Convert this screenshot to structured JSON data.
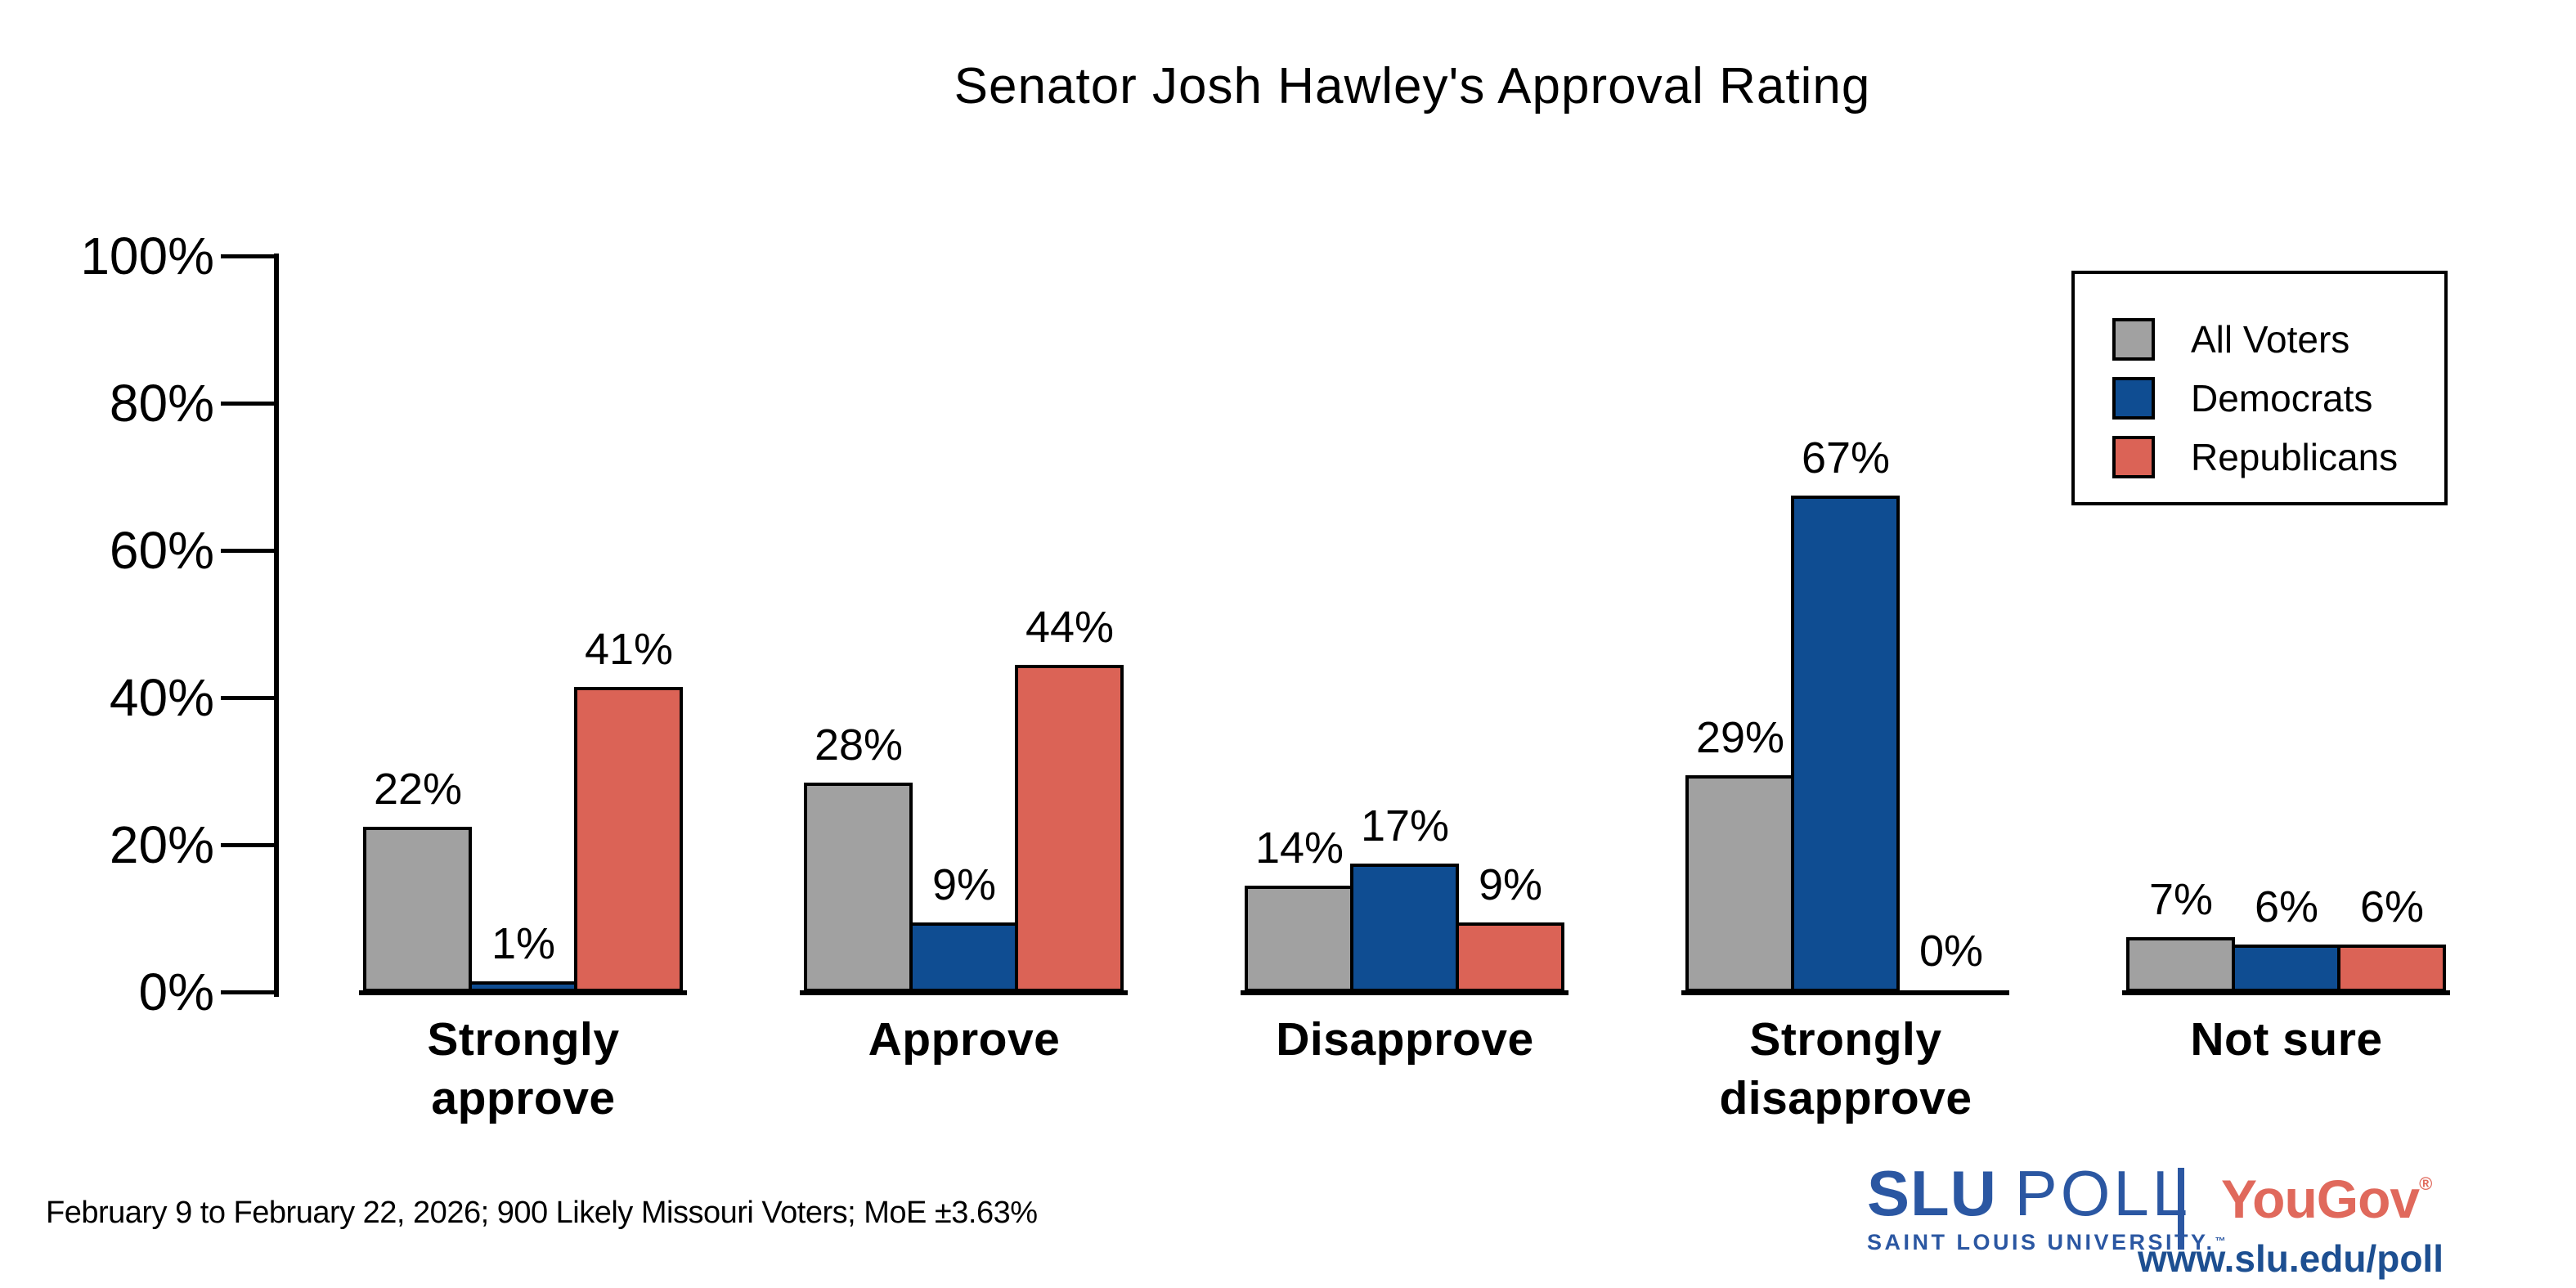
{
  "footnote": "February 9 to February 22, 2026; 900 Likely Missouri Voters; MoE ±3.63%",
  "branding": {
    "slu": "SLU",
    "poll": "POLL",
    "university": "SAINT LOUIS UNIVERSITY.",
    "trademark": "™",
    "yougov": "YouGov",
    "registered": "®",
    "url": "www.slu.edu/poll",
    "slu_blue": "#2b57a2",
    "url_blue": "#1d4f91",
    "yougov_red": "#e0695c"
  },
  "chart_data": {
    "type": "bar",
    "title": "Senator Josh Hawley's Approval Rating",
    "categories": [
      "Strongly approve",
      "Approve",
      "Disapprove",
      "Strongly disapprove",
      "Not sure"
    ],
    "category_lines": [
      [
        "Strongly",
        "approve"
      ],
      [
        "Approve"
      ],
      [
        "Disapprove"
      ],
      [
        "Strongly",
        "disapprove"
      ],
      [
        "Not sure"
      ]
    ],
    "series": [
      {
        "name": "All Voters",
        "color": "#a1a1a1",
        "values": [
          22,
          28,
          14,
          29,
          7
        ]
      },
      {
        "name": "Democrats",
        "color": "#0f4d92",
        "values": [
          1,
          9,
          17,
          67,
          6
        ]
      },
      {
        "name": "Republicans",
        "color": "#db6356",
        "values": [
          41,
          44,
          9,
          0,
          6
        ]
      }
    ],
    "value_suffix": "%",
    "yticks": [
      "0%",
      "20%",
      "40%",
      "60%",
      "80%",
      "100%"
    ],
    "ylim": [
      0,
      100
    ],
    "grid": false,
    "legend_position": "upper right",
    "bar_outline_color": "#000000"
  }
}
